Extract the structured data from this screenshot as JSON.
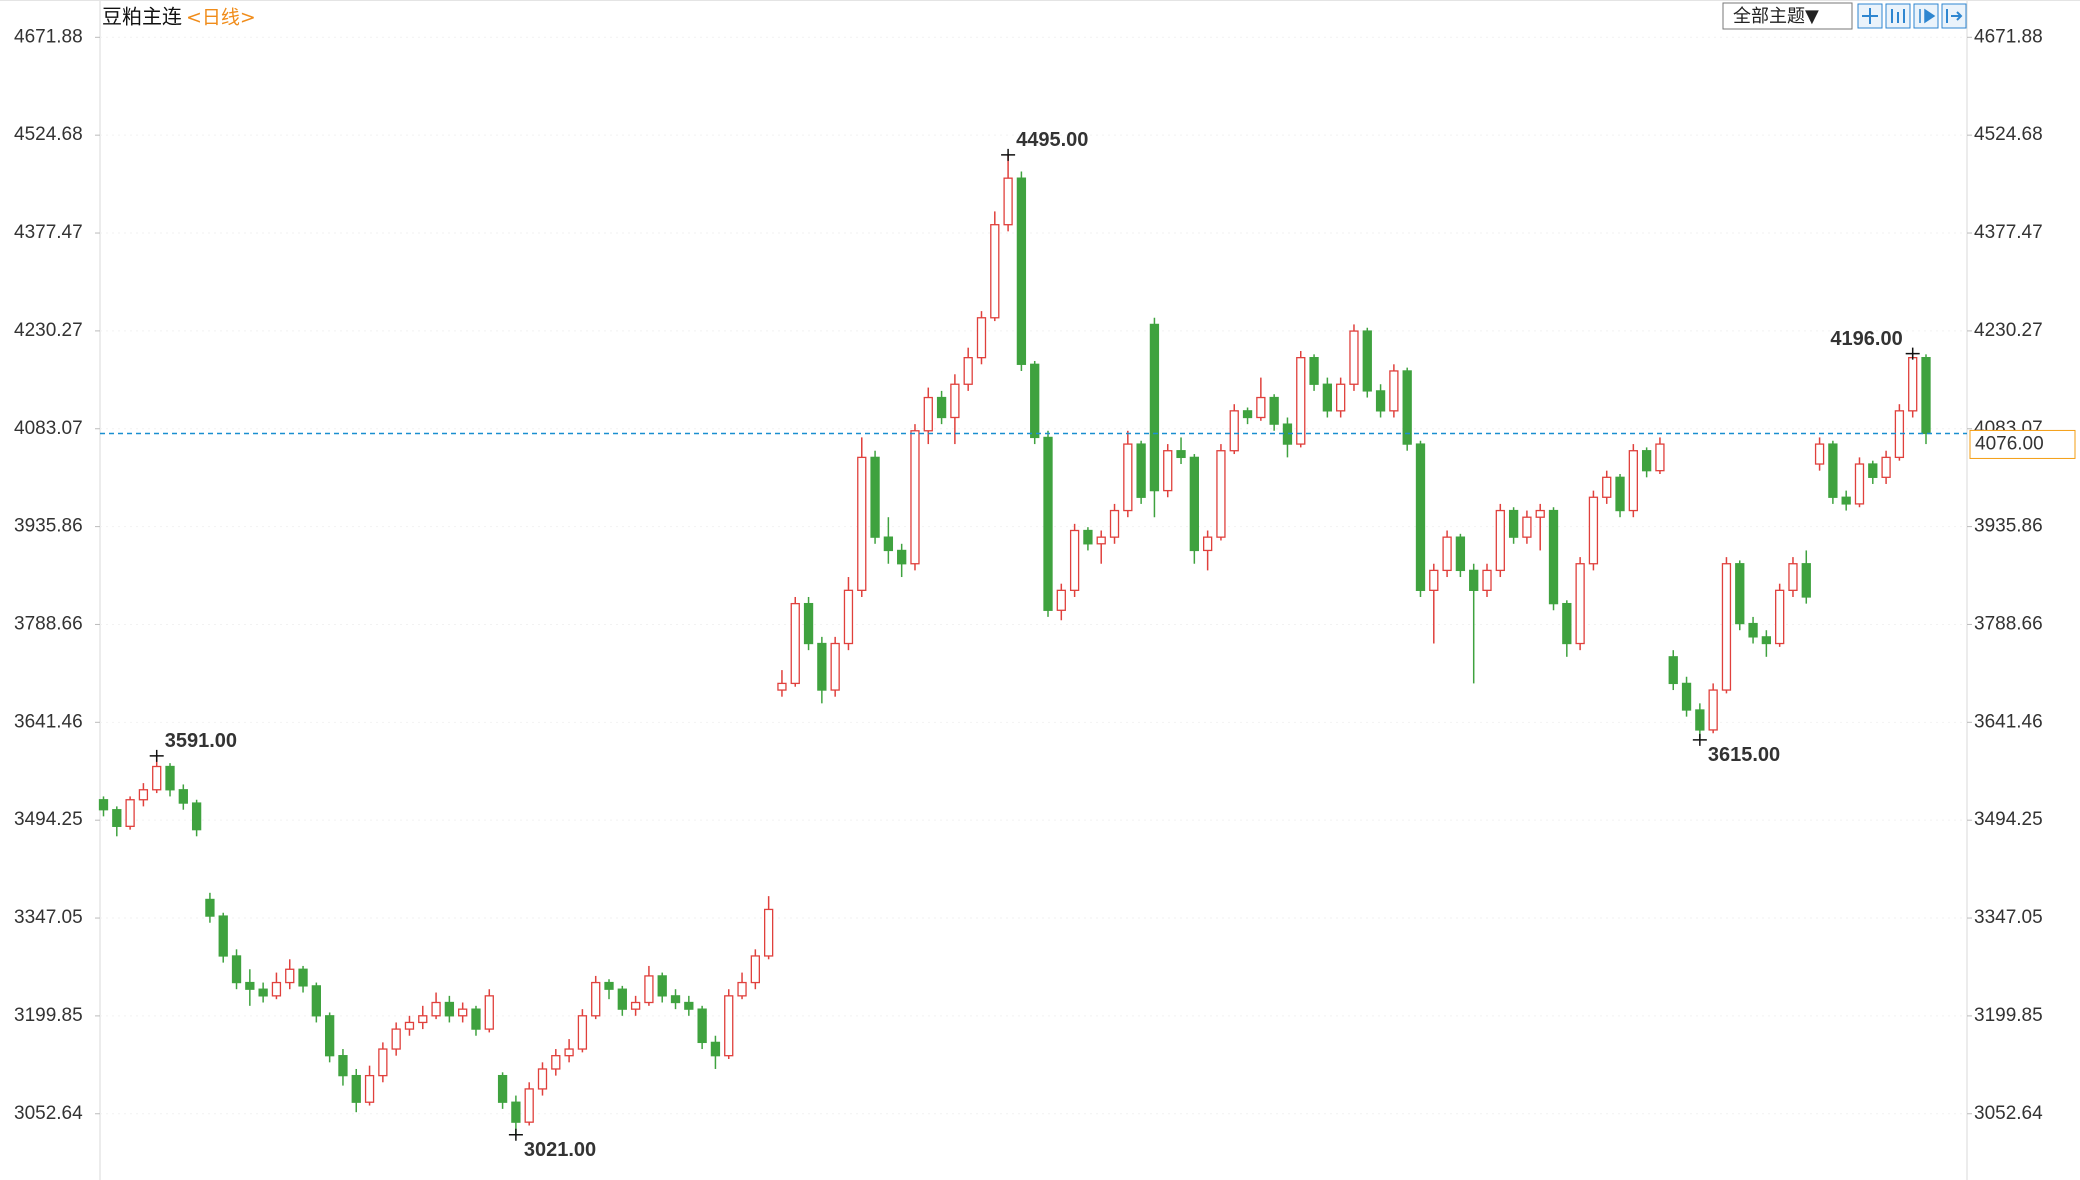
{
  "chart_data": {
    "type": "candlestick",
    "title": "豆粕主连",
    "subtitle": "<日线>",
    "toolbar": "全部主题▼",
    "ylim": [
      2953,
      4728
    ],
    "yticks": [
      3052.64,
      3199.85,
      3347.05,
      3494.25,
      3641.46,
      3788.66,
      3935.86,
      4083.07,
      4230.27,
      4377.47,
      4524.68,
      4671.88
    ],
    "grid": true,
    "up_color": "#e0403c",
    "down_color": "#3fa23f",
    "high_color": "#d93a36",
    "low_color": "#5aa85a",
    "last_price": {
      "value": 4076,
      "label": "4076.00"
    },
    "last_color": "#1a8fd0",
    "last_label_color": "#f39c12",
    "annotations": [
      {
        "value": 3591,
        "label": "3591.00"
      },
      {
        "value": 3021,
        "label": "3021.00"
      },
      {
        "value": 4495,
        "label": "4495.00"
      },
      {
        "value": 3615,
        "label": "3615.00"
      },
      {
        "value": 4196,
        "label": "4196.00"
      }
    ],
    "ohlc": [
      [
        3525,
        3530,
        3500,
        3510
      ],
      [
        3510,
        3515,
        3470,
        3485
      ],
      [
        3485,
        3530,
        3480,
        3525
      ],
      [
        3525,
        3550,
        3515,
        3540
      ],
      [
        3540,
        3591,
        3535,
        3575
      ],
      [
        3575,
        3580,
        3530,
        3540
      ],
      [
        3540,
        3548,
        3510,
        3520
      ],
      [
        3520,
        3525,
        3470,
        3480
      ],
      [
        3375,
        3385,
        3340,
        3350
      ],
      [
        3350,
        3355,
        3280,
        3290
      ],
      [
        3290,
        3300,
        3240,
        3250
      ],
      [
        3250,
        3270,
        3215,
        3240
      ],
      [
        3240,
        3250,
        3220,
        3230
      ],
      [
        3230,
        3265,
        3225,
        3250
      ],
      [
        3250,
        3285,
        3240,
        3270
      ],
      [
        3270,
        3275,
        3235,
        3245
      ],
      [
        3245,
        3250,
        3190,
        3200
      ],
      [
        3200,
        3205,
        3130,
        3140
      ],
      [
        3140,
        3150,
        3095,
        3110
      ],
      [
        3110,
        3120,
        3055,
        3070
      ],
      [
        3070,
        3125,
        3065,
        3110
      ],
      [
        3110,
        3160,
        3100,
        3150
      ],
      [
        3150,
        3190,
        3140,
        3180
      ],
      [
        3180,
        3200,
        3170,
        3190
      ],
      [
        3190,
        3215,
        3180,
        3200
      ],
      [
        3200,
        3235,
        3195,
        3220
      ],
      [
        3220,
        3230,
        3190,
        3200
      ],
      [
        3200,
        3220,
        3190,
        3210
      ],
      [
        3210,
        3215,
        3170,
        3180
      ],
      [
        3180,
        3240,
        3175,
        3230
      ],
      [
        3110,
        3115,
        3060,
        3070
      ],
      [
        3070,
        3080,
        3021,
        3040
      ],
      [
        3040,
        3100,
        3035,
        3090
      ],
      [
        3090,
        3130,
        3080,
        3120
      ],
      [
        3120,
        3150,
        3110,
        3140
      ],
      [
        3140,
        3165,
        3130,
        3150
      ],
      [
        3150,
        3210,
        3145,
        3200
      ],
      [
        3200,
        3260,
        3195,
        3250
      ],
      [
        3250,
        3255,
        3225,
        3240
      ],
      [
        3240,
        3245,
        3200,
        3210
      ],
      [
        3210,
        3230,
        3200,
        3220
      ],
      [
        3220,
        3275,
        3215,
        3260
      ],
      [
        3260,
        3265,
        3220,
        3230
      ],
      [
        3230,
        3240,
        3210,
        3220
      ],
      [
        3220,
        3230,
        3200,
        3210
      ],
      [
        3210,
        3215,
        3150,
        3160
      ],
      [
        3160,
        3170,
        3120,
        3140
      ],
      [
        3140,
        3240,
        3135,
        3230
      ],
      [
        3230,
        3265,
        3225,
        3250
      ],
      [
        3250,
        3300,
        3240,
        3290
      ],
      [
        3290,
        3380,
        3285,
        3360
      ],
      [
        3690,
        3720,
        3680,
        3700
      ],
      [
        3700,
        3830,
        3695,
        3820
      ],
      [
        3820,
        3830,
        3750,
        3760
      ],
      [
        3760,
        3770,
        3670,
        3690
      ],
      [
        3690,
        3770,
        3680,
        3760
      ],
      [
        3760,
        3860,
        3750,
        3840
      ],
      [
        3840,
        4070,
        3830,
        4040
      ],
      [
        4040,
        4050,
        3910,
        3920
      ],
      [
        3920,
        3950,
        3880,
        3900
      ],
      [
        3900,
        3910,
        3860,
        3880
      ],
      [
        3880,
        4090,
        3870,
        4080
      ],
      [
        4080,
        4145,
        4060,
        4130
      ],
      [
        4130,
        4140,
        4090,
        4100
      ],
      [
        4100,
        4165,
        4060,
        4150
      ],
      [
        4150,
        4205,
        4140,
        4190
      ],
      [
        4190,
        4260,
        4180,
        4250
      ],
      [
        4250,
        4410,
        4245,
        4390
      ],
      [
        4390,
        4495,
        4380,
        4460
      ],
      [
        4460,
        4470,
        4170,
        4180
      ],
      [
        4180,
        4185,
        4060,
        4070
      ],
      [
        4070,
        4080,
        3800,
        3810
      ],
      [
        3810,
        3850,
        3795,
        3840
      ],
      [
        3840,
        3940,
        3830,
        3930
      ],
      [
        3930,
        3935,
        3900,
        3910
      ],
      [
        3910,
        3930,
        3880,
        3920
      ],
      [
        3920,
        3970,
        3910,
        3960
      ],
      [
        3960,
        4080,
        3950,
        4060
      ],
      [
        4060,
        4065,
        3970,
        3980
      ],
      [
        4240,
        4250,
        3950,
        3990
      ],
      [
        3990,
        4060,
        3980,
        4050
      ],
      [
        4050,
        4070,
        4030,
        4040
      ],
      [
        4040,
        4045,
        3880,
        3900
      ],
      [
        3900,
        3930,
        3870,
        3920
      ],
      [
        3920,
        4060,
        3915,
        4050
      ],
      [
        4050,
        4120,
        4045,
        4110
      ],
      [
        4110,
        4115,
        4090,
        4100
      ],
      [
        4100,
        4160,
        4095,
        4130
      ],
      [
        4130,
        4135,
        4080,
        4090
      ],
      [
        4090,
        4100,
        4040,
        4060
      ],
      [
        4060,
        4200,
        4055,
        4190
      ],
      [
        4190,
        4195,
        4140,
        4150
      ],
      [
        4150,
        4160,
        4100,
        4110
      ],
      [
        4110,
        4160,
        4100,
        4150
      ],
      [
        4150,
        4240,
        4140,
        4230
      ],
      [
        4230,
        4235,
        4130,
        4140
      ],
      [
        4140,
        4150,
        4100,
        4110
      ],
      [
        4110,
        4180,
        4100,
        4170
      ],
      [
        4170,
        4175,
        4050,
        4060
      ],
      [
        4060,
        4065,
        3830,
        3840
      ],
      [
        3840,
        3880,
        3760,
        3870
      ],
      [
        3870,
        3930,
        3860,
        3920
      ],
      [
        3920,
        3925,
        3860,
        3870
      ],
      [
        3870,
        3880,
        3700,
        3840
      ],
      [
        3840,
        3880,
        3830,
        3870
      ],
      [
        3870,
        3970,
        3860,
        3960
      ],
      [
        3960,
        3965,
        3910,
        3920
      ],
      [
        3920,
        3960,
        3910,
        3950
      ],
      [
        3950,
        3970,
        3900,
        3960
      ],
      [
        3960,
        3965,
        3810,
        3820
      ],
      [
        3820,
        3825,
        3740,
        3760
      ],
      [
        3760,
        3890,
        3750,
        3880
      ],
      [
        3880,
        3990,
        3870,
        3980
      ],
      [
        3980,
        4020,
        3970,
        4010
      ],
      [
        4010,
        4015,
        3950,
        3960
      ],
      [
        3960,
        4060,
        3950,
        4050
      ],
      [
        4050,
        4055,
        4010,
        4020
      ],
      [
        4020,
        4070,
        4015,
        4060
      ],
      [
        3740,
        3750,
        3690,
        3700
      ],
      [
        3700,
        3710,
        3650,
        3660
      ],
      [
        3660,
        3670,
        3615,
        3630
      ],
      [
        3630,
        3700,
        3625,
        3690
      ],
      [
        3690,
        3890,
        3685,
        3880
      ],
      [
        3880,
        3885,
        3780,
        3790
      ],
      [
        3790,
        3800,
        3760,
        3770
      ],
      [
        3770,
        3780,
        3740,
        3760
      ],
      [
        3760,
        3850,
        3755,
        3840
      ],
      [
        3840,
        3890,
        3830,
        3880
      ],
      [
        3880,
        3900,
        3820,
        3830
      ],
      [
        4030,
        4070,
        4020,
        4060
      ],
      [
        4060,
        4065,
        3970,
        3980
      ],
      [
        3980,
        3990,
        3960,
        3970
      ],
      [
        3970,
        4040,
        3965,
        4030
      ],
      [
        4030,
        4035,
        4000,
        4010
      ],
      [
        4010,
        4050,
        4000,
        4040
      ],
      [
        4040,
        4120,
        4035,
        4110
      ],
      [
        4110,
        4196,
        4100,
        4190
      ],
      [
        4190,
        4195,
        4060,
        4076
      ]
    ]
  }
}
